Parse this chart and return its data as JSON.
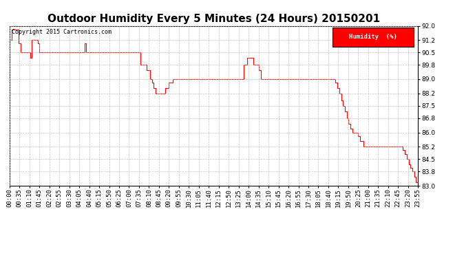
{
  "title": "Outdoor Humidity Every 5 Minutes (24 Hours) 20150201",
  "copyright": "Copyright 2015 Cartronics.com",
  "legend_label": "Humidity  (%)",
  "legend_bg": "#FF0000",
  "legend_fg": "#FFFFFF",
  "line_color": "#FF0000",
  "bg_color": "#FFFFFF",
  "grid_color": "#BBBBBB",
  "ylim": [
    83.0,
    92.0
  ],
  "yticks": [
    83.0,
    83.8,
    84.5,
    85.2,
    86.0,
    86.8,
    87.5,
    88.2,
    89.0,
    89.8,
    90.5,
    91.2,
    92.0
  ],
  "title_fontsize": 11,
  "tick_fontsize": 6.5,
  "xtick_labels": [
    "00:00",
    "00:35",
    "01:10",
    "01:45",
    "02:20",
    "02:55",
    "03:30",
    "04:05",
    "04:40",
    "05:15",
    "05:50",
    "06:25",
    "07:00",
    "07:35",
    "08:10",
    "08:45",
    "09:20",
    "09:55",
    "10:30",
    "11:05",
    "11:40",
    "12:15",
    "12:50",
    "13:25",
    "14:00",
    "14:35",
    "15:10",
    "15:45",
    "16:20",
    "16:55",
    "17:30",
    "18:05",
    "18:40",
    "19:15",
    "19:50",
    "20:25",
    "21:00",
    "21:35",
    "22:10",
    "22:45",
    "23:20",
    "23:55"
  ],
  "humidity_values": [
    91.2,
    91.8,
    91.8,
    91.8,
    91.8,
    91.0,
    90.5,
    90.5,
    90.5,
    90.5,
    90.5,
    90.2,
    91.2,
    91.2,
    91.2,
    91.0,
    90.5,
    90.5,
    90.5,
    90.5,
    90.5,
    90.5,
    90.5,
    90.5,
    90.5,
    90.5,
    90.5,
    90.5,
    90.5,
    90.5,
    90.5,
    90.5,
    90.5,
    90.5,
    90.5,
    90.5,
    90.5,
    90.5,
    90.5,
    90.5,
    91.0,
    90.5,
    90.5,
    90.5,
    90.5,
    90.5,
    90.5,
    90.5,
    90.5,
    90.5,
    90.5,
    90.5,
    90.5,
    90.5,
    90.5,
    90.5,
    90.5,
    90.5,
    90.5,
    90.5,
    90.5,
    90.5,
    90.5,
    90.5,
    90.5,
    90.5,
    90.5,
    90.5,
    90.5,
    90.5,
    89.8,
    89.8,
    89.8,
    89.5,
    89.5,
    89.0,
    88.8,
    88.5,
    88.2,
    88.2,
    88.2,
    88.2,
    88.2,
    88.5,
    88.5,
    88.8,
    88.8,
    89.0,
    89.0,
    89.0,
    89.0,
    89.0,
    89.0,
    89.0,
    89.0,
    89.0,
    89.0,
    89.0,
    89.0,
    89.0,
    89.0,
    89.0,
    89.0,
    89.0,
    89.0,
    89.0,
    89.0,
    89.0,
    89.0,
    89.0,
    89.0,
    89.0,
    89.0,
    89.0,
    89.0,
    89.0,
    89.0,
    89.0,
    89.0,
    89.0,
    89.0,
    89.0,
    89.0,
    89.0,
    89.0,
    89.8,
    89.8,
    90.2,
    90.2,
    90.2,
    89.8,
    89.8,
    89.8,
    89.5,
    89.0,
    89.0,
    89.0,
    89.0,
    89.0,
    89.0,
    89.0,
    89.0,
    89.0,
    89.0,
    89.0,
    89.0,
    89.0,
    89.0,
    89.0,
    89.0,
    89.0,
    89.0,
    89.0,
    89.0,
    89.0,
    89.0,
    89.0,
    89.0,
    89.0,
    89.0,
    89.0,
    89.0,
    89.0,
    89.0,
    89.0,
    89.0,
    89.0,
    89.0,
    89.0,
    89.0,
    89.0,
    89.0,
    89.0,
    89.0,
    88.8,
    88.5,
    88.2,
    87.8,
    87.5,
    87.2,
    86.8,
    86.5,
    86.2,
    86.0,
    86.0,
    86.0,
    85.8,
    85.5,
    85.5,
    85.2,
    85.2,
    85.2,
    85.2,
    85.2,
    85.2,
    85.2,
    85.2,
    85.2,
    85.2,
    85.2,
    85.2,
    85.2,
    85.2,
    85.2,
    85.2,
    85.2,
    85.2,
    85.2,
    85.2,
    85.2,
    85.0,
    84.8,
    84.5,
    84.2,
    84.0,
    83.8,
    83.5,
    83.2,
    83.0
  ]
}
